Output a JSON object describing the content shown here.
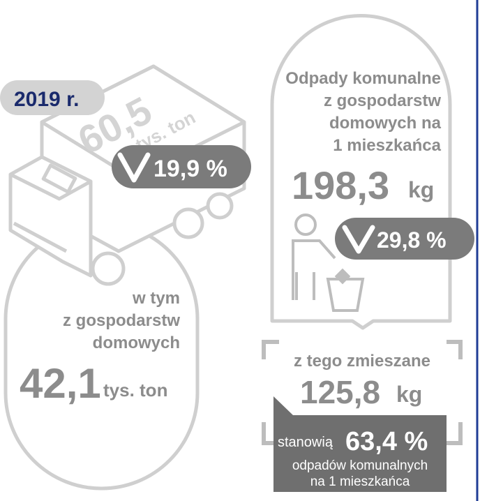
{
  "year_badge": "2019 r.",
  "truck": {
    "value": "60,5",
    "unit": "tys. ton",
    "change": "19,9 %"
  },
  "households": {
    "lines": [
      "w tym",
      "z gospodarstw",
      "domowych"
    ],
    "value": "42,1",
    "unit": "tys. ton"
  },
  "per_capita": {
    "lines": [
      "Odpady komunalne",
      "z gospodarstw",
      "domowych na",
      "1 mieszkańca"
    ],
    "value": "198,3",
    "unit": "kg",
    "change": "29,8 %"
  },
  "mixed": {
    "label": "z tego zmieszane",
    "value": "125,8",
    "unit": "kg"
  },
  "share": {
    "prefix": "stanowią",
    "value": "63,4 %",
    "lines": [
      "odpadów komunalnych",
      "na 1 mieszkańca"
    ]
  }
}
